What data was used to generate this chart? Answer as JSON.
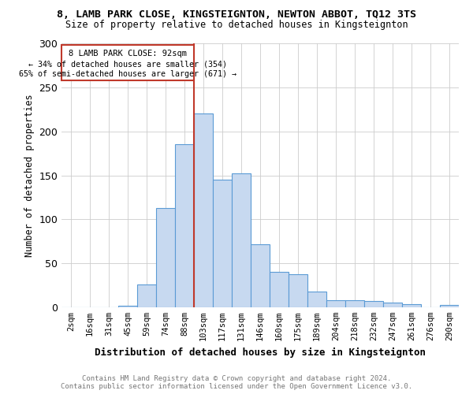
{
  "title": "8, LAMB PARK CLOSE, KINGSTEIGNTON, NEWTON ABBOT, TQ12 3TS",
  "subtitle": "Size of property relative to detached houses in Kingsteignton",
  "xlabel": "Distribution of detached houses by size in Kingsteignton",
  "ylabel": "Number of detached properties",
  "footnote1": "Contains HM Land Registry data © Crown copyright and database right 2024.",
  "footnote2": "Contains public sector information licensed under the Open Government Licence v3.0.",
  "bin_labels": [
    "2sqm",
    "16sqm",
    "31sqm",
    "45sqm",
    "59sqm",
    "74sqm",
    "88sqm",
    "103sqm",
    "117sqm",
    "131sqm",
    "146sqm",
    "160sqm",
    "175sqm",
    "189sqm",
    "204sqm",
    "218sqm",
    "232sqm",
    "247sqm",
    "261sqm",
    "276sqm",
    "290sqm"
  ],
  "bar_heights": [
    0,
    0,
    0,
    2,
    26,
    113,
    185,
    220,
    145,
    152,
    72,
    40,
    38,
    18,
    8,
    8,
    7,
    5,
    4,
    0,
    3
  ],
  "bar_color": "#c7d9f0",
  "bar_edge_color": "#5b9bd5",
  "vline_x_index": 6.5,
  "vline_color": "#c0392b",
  "annotation_title": "8 LAMB PARK CLOSE: 92sqm",
  "annotation_line1": "← 34% of detached houses are smaller (354)",
  "annotation_line2": "65% of semi-detached houses are larger (671) →",
  "annotation_box_color": "#c0392b",
  "ylim": [
    0,
    300
  ],
  "yticks": [
    0,
    50,
    100,
    150,
    200,
    250,
    300
  ]
}
